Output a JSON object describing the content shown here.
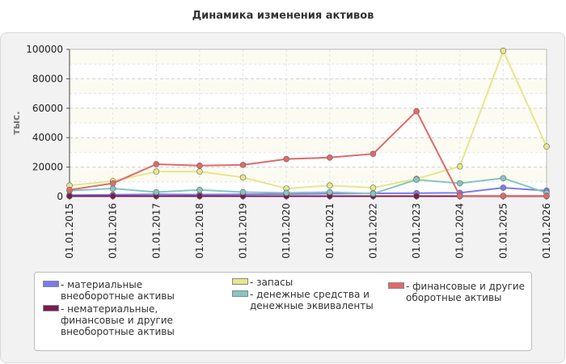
{
  "chart_data": {
    "type": "line",
    "title": "Динамика изменения активов",
    "ylabel": "тыс.",
    "xlabel": "",
    "categories": [
      "01.01.2015",
      "01.01.2016",
      "01.01.2017",
      "01.01.2018",
      "01.01.2019",
      "01.01.2020",
      "01.01.2021",
      "01.01.2022",
      "01.01.2023",
      "01.01.2024",
      "01.01.2025",
      "01.01.2026"
    ],
    "ylim": [
      0,
      100000
    ],
    "yticks": [
      "0",
      "20000",
      "40000",
      "60000",
      "80000",
      "100000"
    ],
    "grid": true,
    "legend_position": "bottom",
    "series": [
      {
        "name": "материальные внеоборотные активы",
        "color": "#7b7be8",
        "values": [
          1000,
          1200,
          1500,
          1300,
          1500,
          1700,
          2000,
          2200,
          2300,
          2500,
          6000,
          4000
        ]
      },
      {
        "name": "нематериальные, финансовые и другие внеоборотные активы",
        "color": "#7a1b52",
        "values": [
          300,
          300,
          300,
          300,
          300,
          300,
          300,
          300,
          300,
          300,
          300,
          300
        ]
      },
      {
        "name": "запасы",
        "color": "#e6e68a",
        "values": [
          7500,
          10500,
          17000,
          17000,
          13000,
          5500,
          7500,
          6000,
          12000,
          20500,
          99000,
          34000
        ]
      },
      {
        "name": "денежные средства и денежные эквиваленты",
        "color": "#86c6c0",
        "values": [
          4000,
          5500,
          3000,
          4500,
          3000,
          2500,
          3000,
          2000,
          11500,
          9000,
          12500,
          2500
        ]
      },
      {
        "name": "финансовые и другие оборотные активы",
        "color": "#e06a6a",
        "values": [
          4500,
          9000,
          22000,
          21000,
          21500,
          25500,
          26500,
          29000,
          58000,
          500,
          500,
          500
        ]
      }
    ]
  }
}
